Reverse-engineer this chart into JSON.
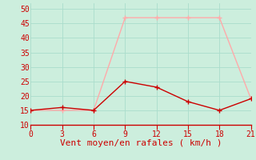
{
  "x": [
    0,
    3,
    6,
    9,
    12,
    15,
    18,
    21
  ],
  "rafales": [
    15,
    15,
    15,
    47,
    47,
    47,
    47,
    19
  ],
  "moyen": [
    15,
    16,
    15,
    25,
    23,
    18,
    15,
    19
  ],
  "color_rafales": "#ffaaaa",
  "color_moyen": "#cc0000",
  "xlabel": "Vent moyen/en rafales ( km/h )",
  "xlabel_color": "#cc0000",
  "bg_color": "#cceedd",
  "grid_color": "#aaddcc",
  "tick_color": "#cc0000",
  "spine_color": "#cc0000",
  "ylim": [
    10,
    52
  ],
  "xlim": [
    0,
    21
  ],
  "yticks": [
    10,
    15,
    20,
    25,
    30,
    35,
    40,
    45,
    50
  ],
  "xticks": [
    0,
    3,
    6,
    9,
    12,
    15,
    18,
    21
  ]
}
